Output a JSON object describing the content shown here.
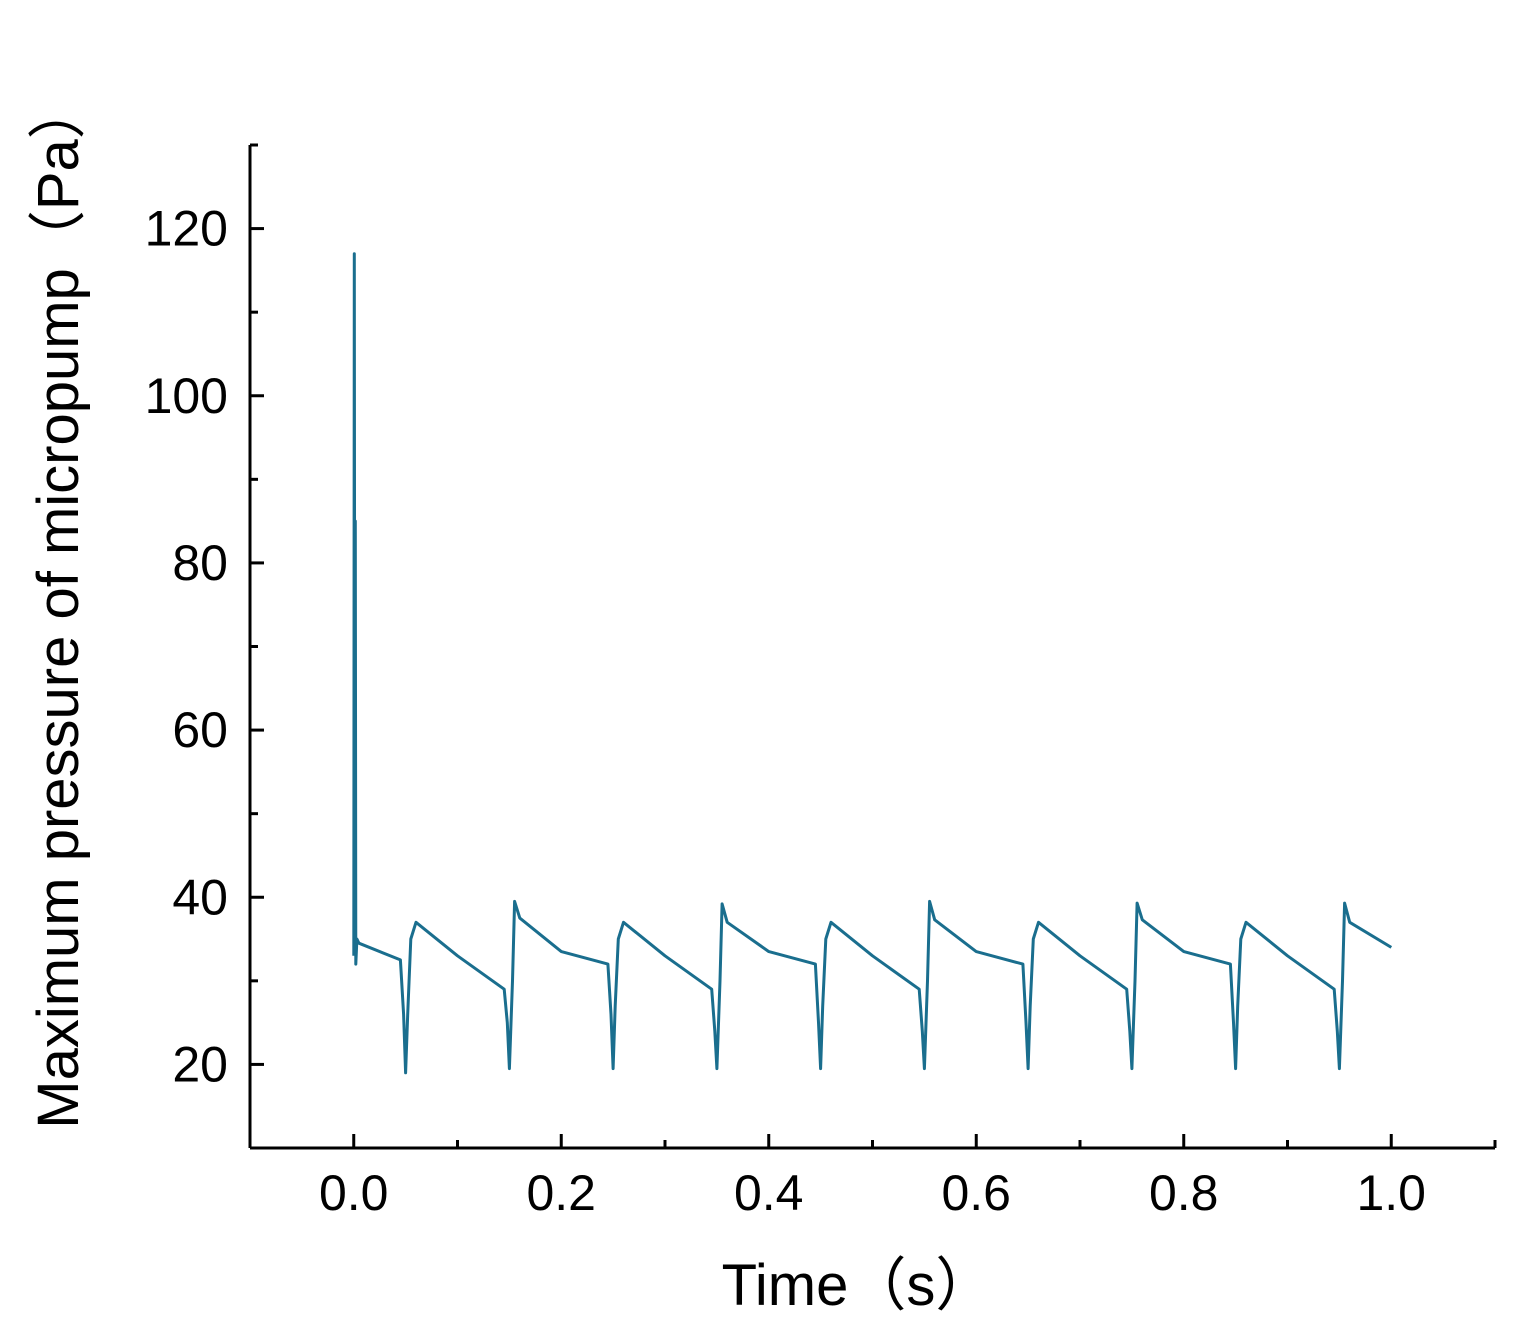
{
  "chart_data": {
    "type": "line",
    "title": "",
    "xlabel": "Time（s）",
    "ylabel": "Maximum pressure of micropump（Pa）",
    "xlim": [
      -0.1,
      1.1
    ],
    "ylim": [
      10,
      130
    ],
    "x_ticks": [
      "0.0",
      "0.2",
      "0.4",
      "0.6",
      "0.8",
      "1.0"
    ],
    "y_ticks": [
      "20",
      "40",
      "60",
      "80",
      "100",
      "120"
    ],
    "grid": false,
    "legend": "none",
    "series": [
      {
        "color": "#1a6e8e",
        "x": [
          0.0,
          0.0005,
          0.001,
          0.0015,
          0.002,
          0.003,
          0.005,
          0.045,
          0.048,
          0.05,
          0.052,
          0.055,
          0.06,
          0.1,
          0.145,
          0.148,
          0.15,
          0.153,
          0.155,
          0.16,
          0.2,
          0.245,
          0.248,
          0.25,
          0.252,
          0.255,
          0.26,
          0.3,
          0.345,
          0.348,
          0.35,
          0.353,
          0.355,
          0.36,
          0.4,
          0.445,
          0.448,
          0.45,
          0.452,
          0.455,
          0.46,
          0.5,
          0.545,
          0.548,
          0.55,
          0.553,
          0.555,
          0.56,
          0.6,
          0.645,
          0.648,
          0.65,
          0.652,
          0.655,
          0.66,
          0.7,
          0.745,
          0.748,
          0.75,
          0.753,
          0.755,
          0.76,
          0.8,
          0.845,
          0.848,
          0.85,
          0.852,
          0.855,
          0.86,
          0.9,
          0.945,
          0.948,
          0.95,
          0.953,
          0.955,
          0.96,
          1.0
        ],
        "values": [
          33,
          117,
          43,
          85,
          32,
          35,
          34.5,
          32.5,
          26,
          19,
          26,
          35,
          37,
          33,
          29,
          25,
          19.5,
          30,
          39.5,
          37.5,
          33.5,
          32,
          26,
          19.5,
          27,
          35,
          37,
          33,
          29,
          24,
          19.5,
          30,
          39.2,
          37,
          33.5,
          32,
          25,
          19.5,
          27,
          35,
          37,
          33,
          29,
          24,
          19.5,
          30,
          39.5,
          37.3,
          33.5,
          32,
          25,
          19.5,
          27,
          35,
          37,
          33,
          29,
          24,
          19.5,
          30,
          39.3,
          37.3,
          33.5,
          32,
          25,
          19.5,
          27,
          35,
          37,
          33,
          29,
          24,
          19.5,
          30,
          39.3,
          37,
          34
        ]
      }
    ]
  }
}
